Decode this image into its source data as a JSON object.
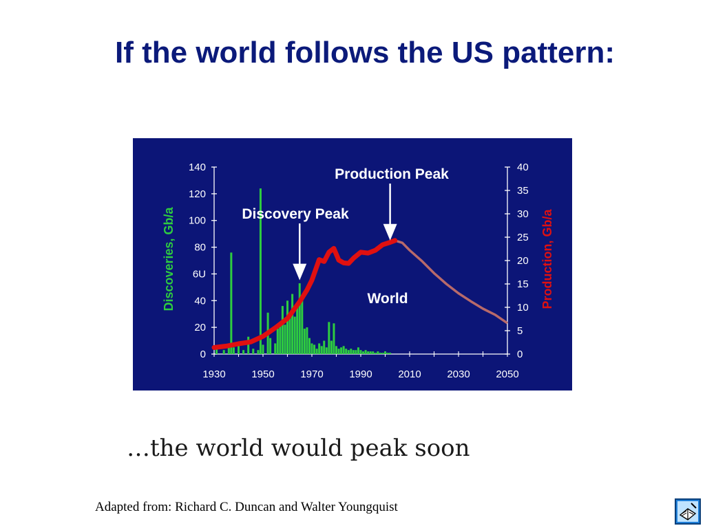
{
  "slide": {
    "title": "If the world follows the US pattern:",
    "caption": "…the world would peak soon",
    "source": "Adapted from: Richard C. Duncan and Walter Youngquist"
  },
  "icons": {
    "corner": "book-icon"
  },
  "chart_data": {
    "type": "bar+line",
    "title": "",
    "left_axis": {
      "label": "Discoveries, Gb/a",
      "ylim": [
        0,
        140
      ],
      "ticks": [
        0,
        20,
        40,
        60,
        80,
        100,
        120,
        140
      ],
      "tick_labels": [
        "0",
        "20",
        "40",
        "6U",
        "80",
        "100",
        "120",
        "140"
      ],
      "color": "#2ecc40"
    },
    "right_axis": {
      "label": "Production, Gb/a",
      "ylim": [
        0,
        40
      ],
      "ticks": [
        0,
        5,
        10,
        15,
        20,
        25,
        30,
        35,
        40
      ],
      "color": "#e01010"
    },
    "x_axis": {
      "xlim": [
        1930,
        2050
      ],
      "ticks": [
        1930,
        1950,
        1970,
        1990,
        2010,
        2030,
        2050
      ]
    },
    "series": [
      {
        "name": "Discoveries",
        "type": "bar",
        "color": "#2ecc40",
        "x": [
          1931,
          1934,
          1936,
          1937,
          1938,
          1940,
          1942,
          1944,
          1946,
          1948,
          1949,
          1950,
          1952,
          1953,
          1955,
          1956,
          1957,
          1958,
          1959,
          1960,
          1961,
          1962,
          1963,
          1964,
          1965,
          1966,
          1967,
          1968,
          1969,
          1970,
          1971,
          1972,
          1973,
          1974,
          1975,
          1976,
          1977,
          1978,
          1979,
          1980,
          1981,
          1982,
          1983,
          1984,
          1985,
          1986,
          1987,
          1988,
          1989,
          1990,
          1991,
          1992,
          1993,
          1994,
          1995,
          1996,
          1997,
          1998,
          1999,
          2000,
          2001,
          2002
        ],
        "values": [
          4,
          3,
          8,
          76,
          5,
          6,
          3,
          13,
          4,
          3,
          124,
          7,
          31,
          12,
          8,
          19,
          24,
          36,
          22,
          40,
          30,
          45,
          28,
          35,
          53,
          42,
          19,
          20,
          12,
          8,
          7,
          4,
          8,
          6,
          10,
          5,
          24,
          10,
          23,
          6,
          4,
          5,
          6,
          4,
          3,
          4,
          3,
          3,
          5,
          3,
          2,
          3,
          2,
          2,
          2,
          1,
          2,
          1,
          1,
          2,
          1,
          1
        ]
      },
      {
        "name": "Production (historical)",
        "type": "line",
        "color": "#e01010",
        "x": [
          1930,
          1935,
          1940,
          1945,
          1950,
          1955,
          1960,
          1965,
          1968,
          1970,
          1973,
          1975,
          1977,
          1979,
          1981,
          1983,
          1985,
          1987,
          1990,
          1993,
          1996,
          1999,
          2002,
          2004
        ],
        "values": [
          1.4,
          1.7,
          2.2,
          2.6,
          3.8,
          5.6,
          7.6,
          11.2,
          13.7,
          15.8,
          20.2,
          19.8,
          21.8,
          22.6,
          20.1,
          19.5,
          19.4,
          20.5,
          21.8,
          21.6,
          22.2,
          23.4,
          23.9,
          24.3
        ]
      },
      {
        "name": "Production (forecast)",
        "type": "line",
        "color": "#b86a6a",
        "x": [
          2004,
          2007,
          2010,
          2015,
          2020,
          2025,
          2030,
          2035,
          2040,
          2045,
          2050
        ],
        "values": [
          24.3,
          23.8,
          22.2,
          19.9,
          17.3,
          15.0,
          13.0,
          11.3,
          9.7,
          8.4,
          6.6
        ]
      }
    ],
    "annotations": [
      {
        "text": "Production Peak",
        "arrow_to": {
          "x": 2002,
          "y_right": 24
        }
      },
      {
        "text": "Discovery Peak",
        "arrow_to": {
          "x": 1965,
          "y_right": 15.5
        }
      },
      {
        "text": "World"
      }
    ],
    "grid": false,
    "legend": "none"
  }
}
